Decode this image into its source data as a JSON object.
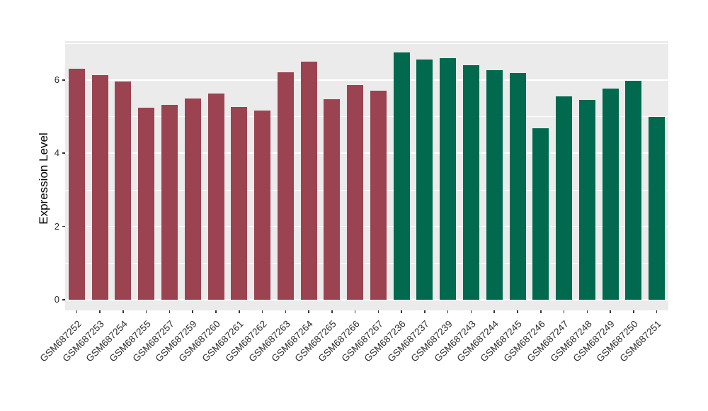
{
  "chart_data": {
    "type": "bar",
    "title": "",
    "xlabel": "",
    "ylabel": "Expression Level",
    "ylim": [
      0,
      7.06
    ],
    "yticks": [
      0,
      2,
      4,
      6
    ],
    "yticks_minor": [
      1,
      3,
      5,
      7
    ],
    "grid": "white major and minor horizontal lines on gray panel",
    "legend_position": "none",
    "panel_background": "#EBEBEB",
    "categories": [
      "GSM687252",
      "GSM687253",
      "GSM687254",
      "GSM687255",
      "GSM687257",
      "GSM687259",
      "GSM687260",
      "GSM687261",
      "GSM687262",
      "GSM687263",
      "GSM687264",
      "GSM687265",
      "GSM687266",
      "GSM687267",
      "GSM687236",
      "GSM687237",
      "GSM687239",
      "GSM687243",
      "GSM687244",
      "GSM687245",
      "GSM687246",
      "GSM687247",
      "GSM687248",
      "GSM687249",
      "GSM687250",
      "GSM687251"
    ],
    "values": [
      6.31,
      6.13,
      5.96,
      5.25,
      5.31,
      5.49,
      5.62,
      5.27,
      5.16,
      6.21,
      6.49,
      5.47,
      5.87,
      5.7,
      6.75,
      6.55,
      6.6,
      6.4,
      6.26,
      6.19,
      4.68,
      5.55,
      5.45,
      5.76,
      5.97,
      5.0
    ],
    "groups": [
      "group1",
      "group1",
      "group1",
      "group1",
      "group1",
      "group1",
      "group1",
      "group1",
      "group1",
      "group1",
      "group1",
      "group1",
      "group1",
      "group1",
      "group2",
      "group2",
      "group2",
      "group2",
      "group2",
      "group2",
      "group2",
      "group2",
      "group2",
      "group2",
      "group2",
      "group2"
    ],
    "group_colors": {
      "group1": "#9C4351",
      "group2": "#016A4E"
    }
  }
}
